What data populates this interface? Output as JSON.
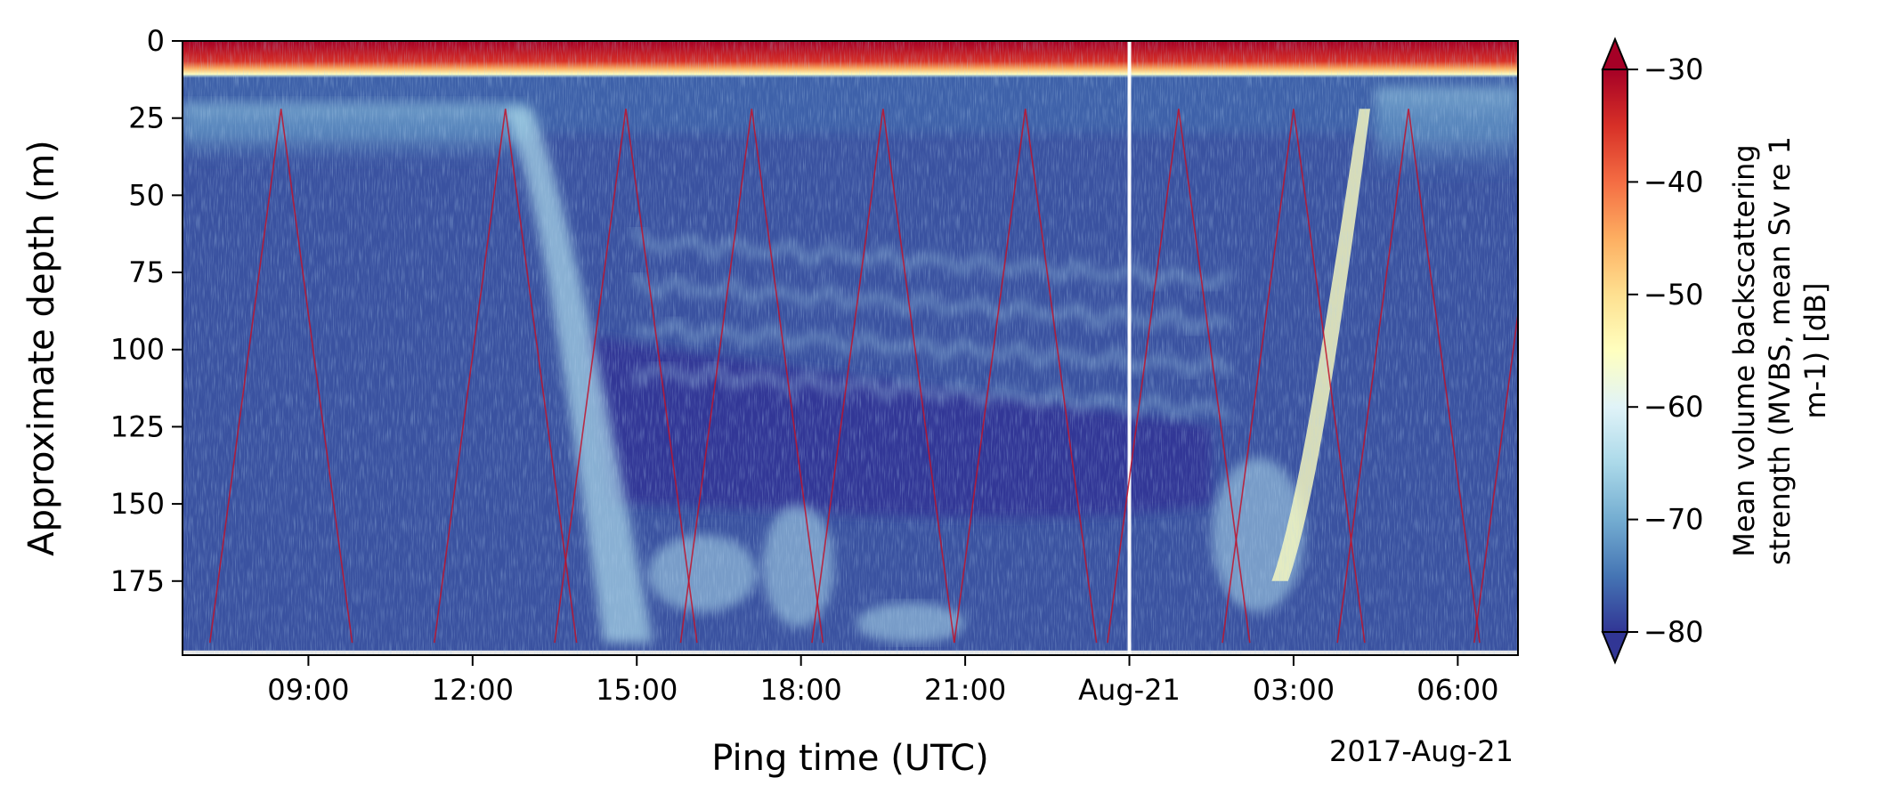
{
  "chart_data": {
    "type": "heatmap",
    "title": "",
    "xlabel": "Ping time (UTC)",
    "ylabel": "Approximate depth (m)",
    "x_ticks": [
      "09:00",
      "12:00",
      "15:00",
      "18:00",
      "21:00",
      "Aug-21",
      "03:00",
      "06:00"
    ],
    "x_tick_hours": [
      9,
      12,
      15,
      18,
      21,
      24,
      27,
      30
    ],
    "x_offset_label": "2017-Aug-21",
    "x_range_hours": [
      6.7,
      31.1
    ],
    "y_ticks": [
      0,
      25,
      50,
      75,
      100,
      125,
      150,
      175
    ],
    "y_range": [
      0,
      199
    ],
    "colorbar": {
      "label_lines": [
        "Mean volume backscattering",
        "strength (MVBS, mean Sv re 1",
        "m-1) [dB]"
      ],
      "ticks": [
        -30,
        -40,
        -50,
        -60,
        -70,
        -80
      ],
      "range": [
        -80,
        -30
      ],
      "extend": "both",
      "colormap": "RdYlBu_r"
    },
    "features": {
      "surface_band_depth": [
        0,
        8
      ],
      "date_divider_hour": 24,
      "scattering_layer_depth_night": [
        20,
        40
      ],
      "scattering_layer_depth_day": [
        140,
        195
      ],
      "profiler_cycle_start_hours": [
        7.2,
        11.3,
        13.5,
        15.8,
        18.2,
        20.8,
        23.6,
        25.7,
        27.8,
        30.3
      ],
      "profiler_depth_range": [
        22,
        195
      ]
    }
  },
  "colors": {
    "background": "#ffffff",
    "deep_blue": "#313695",
    "mid_blue": "#4575b4",
    "light_blue": "#abd9e9",
    "pale_yellow": "#ffffbf",
    "orange": "#f46d43",
    "dark_red": "#a50026",
    "axis": "#000000"
  }
}
